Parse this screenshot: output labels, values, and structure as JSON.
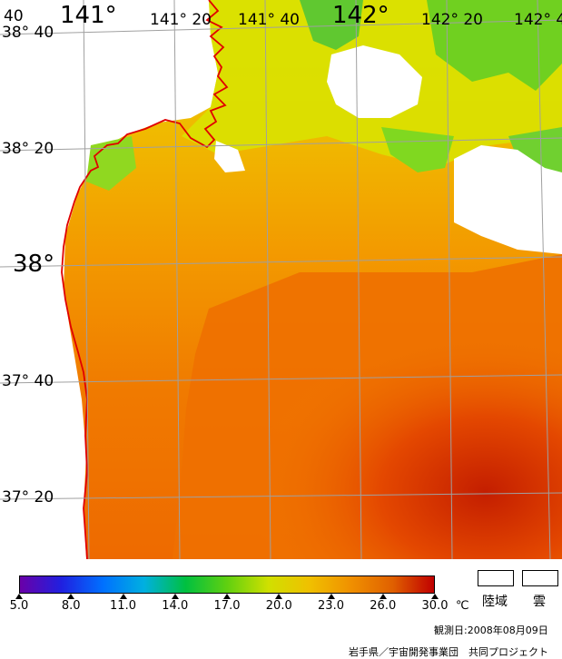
{
  "map": {
    "longitude_labels": [
      "40",
      "141°",
      "141° 20",
      "141° 40",
      "142°",
      "142° 20",
      "142° 4"
    ],
    "latitude_labels": [
      "38° 40",
      "38° 20",
      "38°",
      "37° 40",
      "37° 20"
    ],
    "colors": {
      "coastline": "#e00000",
      "grid": "#a0a0a0",
      "cloud": "#ffffff"
    }
  },
  "legend": {
    "colorbar_stops": [
      "#6a00a8",
      "#2020e0",
      "#0070ff",
      "#00b0e0",
      "#00c040",
      "#60d010",
      "#d0e000",
      "#f0c000",
      "#f09000",
      "#e06000",
      "#c00000"
    ],
    "ticks": [
      "5.0",
      "8.0",
      "11.0",
      "14.0",
      "17.0",
      "20.0",
      "23.0",
      "26.0",
      "30.0"
    ],
    "unit": "℃",
    "land_label": "陸域",
    "cloud_label": "雲",
    "date_text": "観測日:2008年08月09日",
    "credit": "岩手県／宇宙開発事業団　共同プロジェクト"
  }
}
